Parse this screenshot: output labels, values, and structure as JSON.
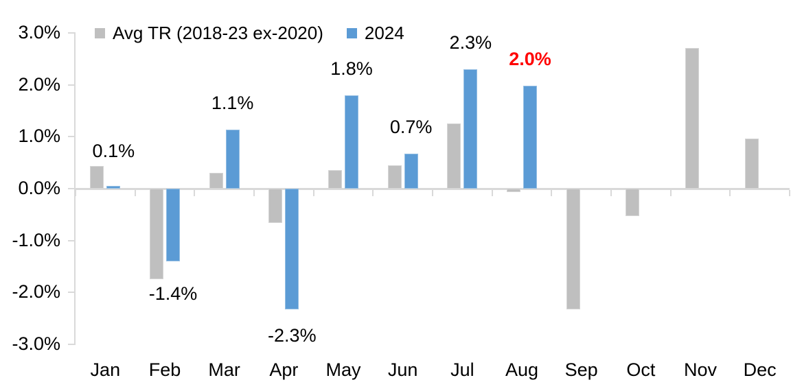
{
  "chart_data": {
    "type": "bar",
    "title": "",
    "xlabel": "",
    "ylabel": "",
    "categories": [
      "Jan",
      "Feb",
      "Mar",
      "Apr",
      "May",
      "Jun",
      "Jul",
      "Aug",
      "Sep",
      "Oct",
      "Nov",
      "Dec"
    ],
    "series": [
      {
        "name": "Avg TR (2018-23 ex-2020)",
        "color": "#BFBFBF",
        "values": [
          0.43,
          -1.75,
          0.3,
          -0.66,
          0.36,
          0.45,
          1.25,
          -0.07,
          -2.32,
          -0.53,
          2.71,
          0.97
        ]
      },
      {
        "name": "2024",
        "color": "#5B9BD5",
        "values": [
          0.05,
          -1.4,
          1.13,
          -2.33,
          1.8,
          0.68,
          2.3,
          1.98,
          null,
          null,
          null,
          null
        ]
      }
    ],
    "data_labels": [
      {
        "category": "Jan",
        "text": "0.1%",
        "highlight": false
      },
      {
        "category": "Feb",
        "text": "-1.4%",
        "highlight": false
      },
      {
        "category": "Mar",
        "text": "1.1%",
        "highlight": false
      },
      {
        "category": "Apr",
        "text": "-2.3%",
        "highlight": false
      },
      {
        "category": "May",
        "text": "1.8%",
        "highlight": false
      },
      {
        "category": "Jun",
        "text": "0.7%",
        "highlight": false
      },
      {
        "category": "Jul",
        "text": "2.3%",
        "highlight": false
      },
      {
        "category": "Aug",
        "text": "2.0%",
        "highlight": true
      }
    ],
    "y_axis": {
      "tick_labels": [
        "3.0%",
        "2.0%",
        "1.0%",
        "0.0%",
        "-1.0%",
        "-2.0%",
        "-3.0%"
      ],
      "min": -3.0,
      "max": 3.0,
      "step": 1.0
    },
    "grid": false,
    "legend_position": "top",
    "colors": {
      "highlight_label": "#FF0000",
      "label_text": "#000000",
      "axis_line": "#D9D9D9"
    }
  }
}
